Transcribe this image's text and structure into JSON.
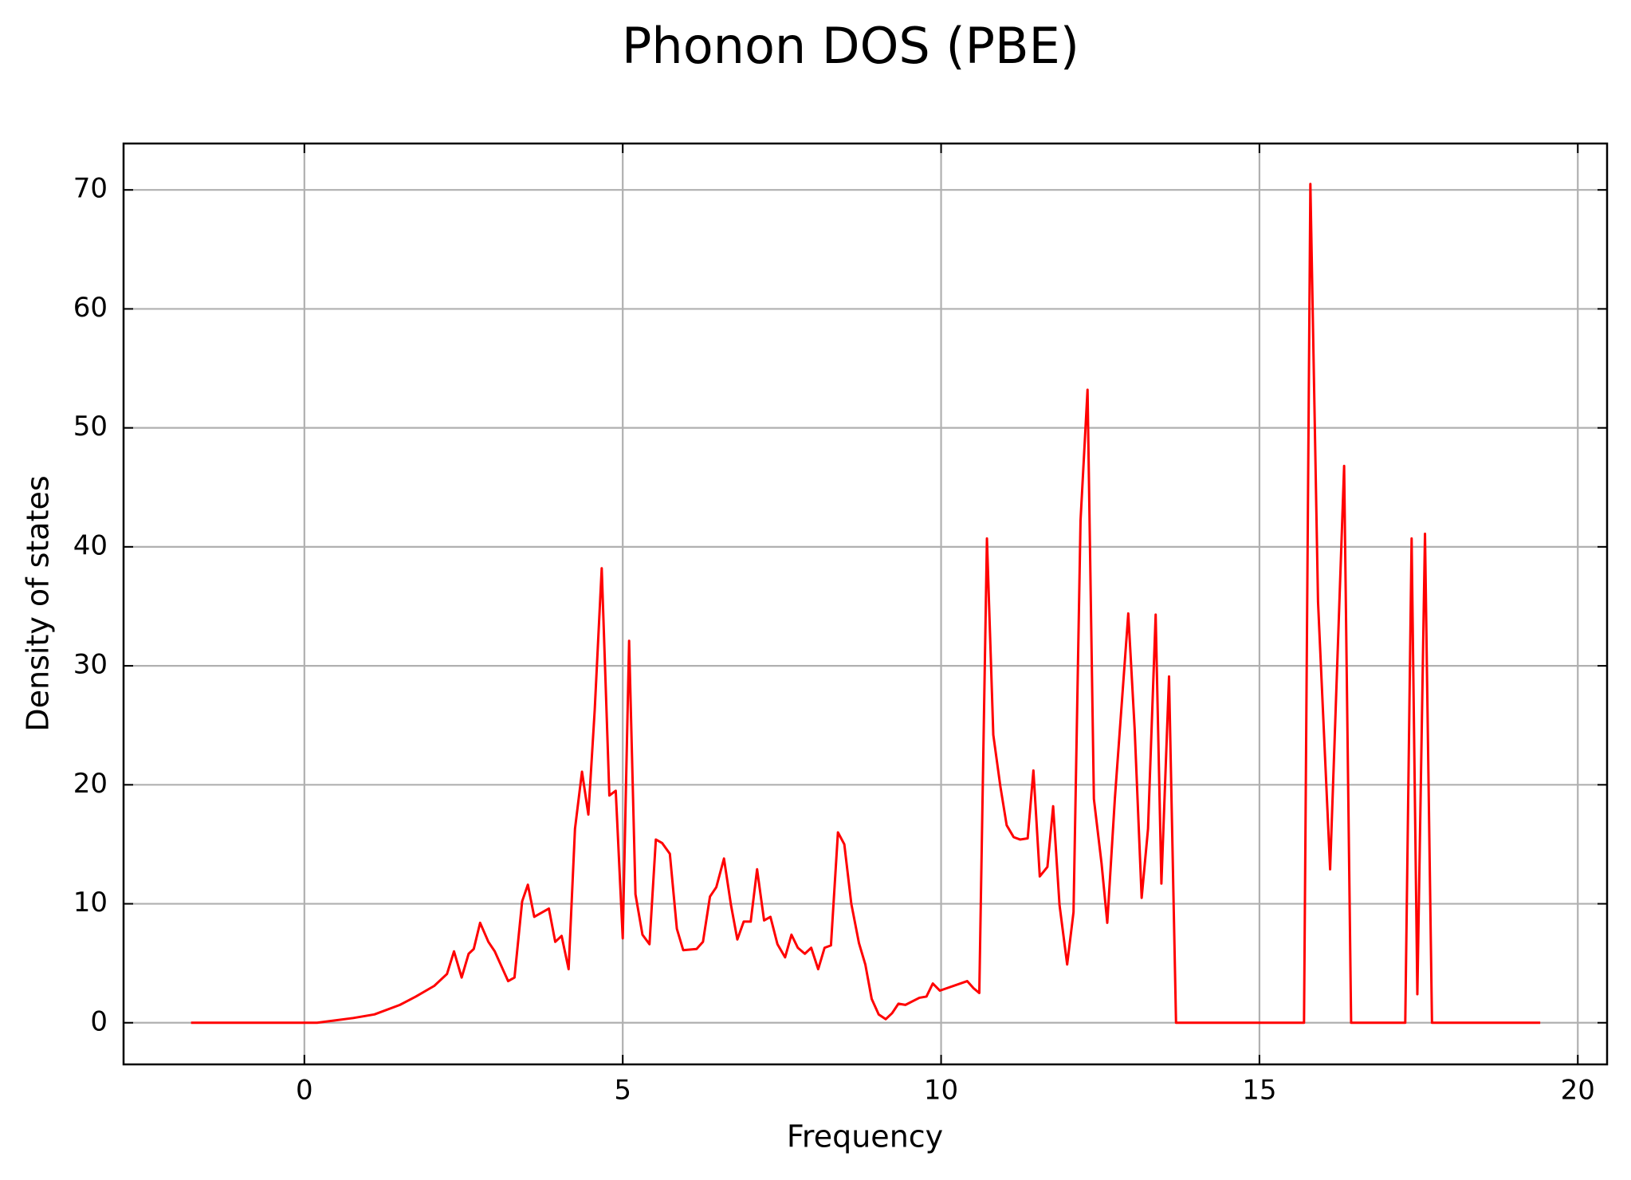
{
  "chart_data": {
    "type": "line",
    "title": "Phonon DOS (PBE)",
    "x_label": "Frequency",
    "y_label": "Density of states",
    "xlim": [
      -2.84,
      20.46
    ],
    "ylim": [
      -3.5,
      73.9
    ],
    "xticks": [
      0,
      5,
      10,
      15,
      20
    ],
    "yticks": [
      0,
      10,
      20,
      30,
      40,
      50,
      60,
      70
    ],
    "grid": true,
    "series": [
      {
        "color": "#ff0000",
        "x": [
          -1.78,
          0.2,
          0.77,
          1.1,
          1.5,
          1.75,
          2.04,
          2.24,
          2.35,
          2.47,
          2.58,
          2.66,
          2.76,
          2.89,
          2.99,
          3.2,
          3.3,
          3.42,
          3.51,
          3.61,
          3.84,
          3.94,
          4.04,
          4.15,
          4.25,
          4.36,
          4.46,
          4.56,
          4.67,
          4.79,
          4.89,
          5.0,
          5.1,
          5.2,
          5.31,
          5.42,
          5.52,
          5.62,
          5.74,
          5.85,
          5.95,
          6.16,
          6.26,
          6.37,
          6.47,
          6.59,
          6.7,
          6.8,
          6.9,
          7.01,
          7.11,
          7.22,
          7.32,
          7.43,
          7.55,
          7.65,
          7.75,
          7.86,
          7.96,
          8.07,
          8.17,
          8.27,
          8.38,
          8.48,
          8.59,
          8.71,
          8.81,
          8.91,
          9.02,
          9.13,
          9.23,
          9.33,
          9.44,
          9.66,
          9.77,
          9.87,
          9.98,
          10.41,
          10.51,
          10.6,
          10.72,
          10.82,
          10.93,
          11.03,
          11.14,
          11.24,
          11.36,
          11.45,
          11.55,
          11.67,
          11.76,
          11.86,
          11.98,
          12.08,
          12.19,
          12.3,
          12.4,
          12.52,
          12.61,
          12.73,
          12.94,
          13.04,
          13.15,
          13.25,
          13.37,
          13.46,
          13.58,
          13.69,
          15.7,
          15.8,
          15.92,
          16.11,
          16.33,
          16.44,
          17.29,
          17.39,
          17.48,
          17.6,
          17.71,
          19.41
        ],
        "values": [
          0,
          0,
          0.4,
          0.7,
          1.5,
          2.2,
          3.1,
          4.1,
          6.0,
          3.8,
          5.8,
          6.2,
          8.4,
          6.8,
          6.0,
          3.5,
          3.8,
          10.2,
          11.6,
          8.9,
          9.6,
          6.8,
          7.3,
          4.5,
          16.3,
          21.1,
          17.5,
          26.3,
          38.2,
          19.1,
          19.5,
          7.1,
          32.1,
          10.8,
          7.4,
          6.6,
          15.4,
          15.1,
          14.2,
          7.9,
          6.1,
          6.2,
          6.8,
          10.6,
          11.4,
          13.8,
          9.9,
          7.0,
          8.5,
          8.5,
          12.9,
          8.6,
          8.9,
          6.6,
          5.5,
          7.4,
          6.3,
          5.8,
          6.3,
          4.5,
          6.3,
          6.5,
          16.0,
          15.0,
          10.0,
          6.7,
          4.9,
          2.0,
          0.7,
          0.3,
          0.8,
          1.6,
          1.5,
          2.1,
          2.2,
          3.3,
          2.7,
          3.5,
          2.9,
          2.5,
          40.7,
          24.2,
          19.9,
          16.6,
          15.6,
          15.4,
          15.5,
          21.2,
          12.3,
          13.1,
          18.2,
          9.9,
          4.9,
          9.3,
          42.2,
          53.2,
          18.8,
          13.4,
          8.4,
          18.9,
          34.4,
          24.7,
          10.5,
          16.3,
          34.3,
          11.7,
          29.1,
          0,
          0,
          70.5,
          35.4,
          12.9,
          46.8,
          0,
          0,
          40.7,
          2.4,
          41.1,
          0,
          0
        ]
      }
    ]
  }
}
